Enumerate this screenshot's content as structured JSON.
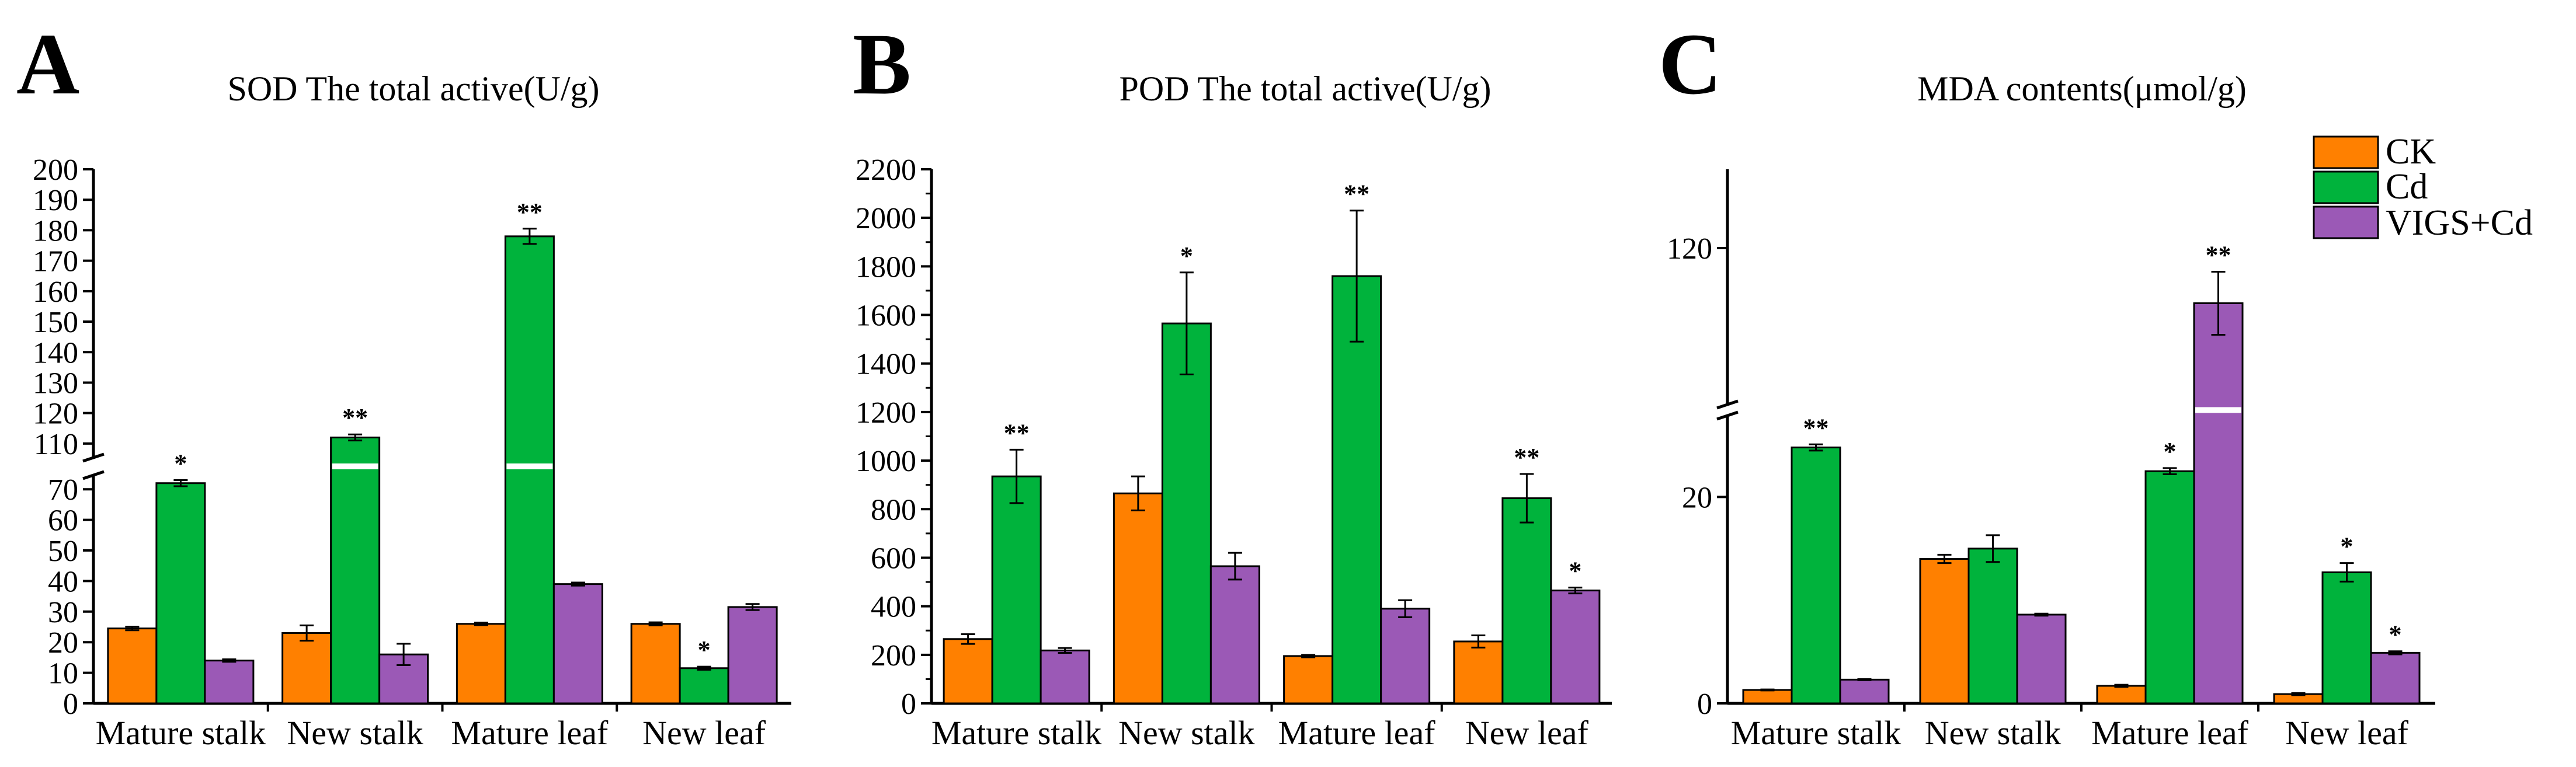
{
  "legend": [
    {
      "label": "CK",
      "color": "#ff8000"
    },
    {
      "label": "Cd",
      "color": "#00b33c"
    },
    {
      "label": "VIGS+Cd",
      "color": "#9b59b6"
    }
  ],
  "chart_data": [
    {
      "panel": "A",
      "type": "bar",
      "title": "SOD The total active(U/g)",
      "categories": [
        "Mature stalk",
        "New stalk",
        "Mature leaf",
        "New leaf"
      ],
      "series": [
        {
          "name": "CK",
          "values": [
            24.5,
            23,
            26,
            26
          ],
          "errors": [
            0.6,
            2.5,
            0.4,
            0.5
          ],
          "sig": [
            "",
            "",
            "",
            ""
          ]
        },
        {
          "name": "Cd",
          "values": [
            72,
            112,
            178,
            11.5
          ],
          "errors": [
            1,
            1,
            2.5,
            0.5
          ],
          "sig": [
            "*",
            "**",
            "**",
            "*"
          ]
        },
        {
          "name": "VIGS+Cd",
          "values": [
            14,
            16,
            39,
            31.5
          ],
          "errors": [
            0.4,
            3.5,
            0.5,
            1
          ],
          "sig": [
            "",
            "",
            "",
            ""
          ]
        }
      ],
      "axis_break": [
        75,
        105
      ],
      "yticks": [
        0,
        10,
        20,
        30,
        40,
        50,
        60,
        70,
        110,
        120,
        130,
        140,
        150,
        160,
        170,
        180,
        190,
        200
      ],
      "ylim": [
        0,
        200
      ]
    },
    {
      "panel": "B",
      "type": "bar",
      "title": "POD The total active(U/g)",
      "categories": [
        "Mature stalk",
        "New stalk",
        "Mature leaf",
        "New leaf"
      ],
      "series": [
        {
          "name": "CK",
          "values": [
            265,
            865,
            195,
            255
          ],
          "errors": [
            20,
            70,
            5,
            25
          ],
          "sig": [
            "",
            "",
            "",
            ""
          ]
        },
        {
          "name": "Cd",
          "values": [
            935,
            1565,
            1760,
            845
          ],
          "errors": [
            110,
            210,
            270,
            100
          ],
          "sig": [
            "**",
            "*",
            "**",
            "**"
          ]
        },
        {
          "name": "VIGS+Cd",
          "values": [
            218,
            565,
            390,
            465
          ],
          "errors": [
            10,
            55,
            35,
            12
          ],
          "sig": [
            "",
            "",
            "",
            "*"
          ]
        }
      ],
      "yticks": [
        0,
        200,
        400,
        600,
        800,
        1000,
        1200,
        1400,
        1600,
        1800,
        2000,
        2200
      ],
      "ylim": [
        0,
        2200
      ]
    },
    {
      "panel": "C",
      "type": "bar",
      "title": "MDA contents(μmol/g)",
      "categories": [
        "Mature stalk",
        "New stalk",
        "Mature leaf",
        "New leaf"
      ],
      "series": [
        {
          "name": "CK",
          "values": [
            1.3,
            14,
            1.7,
            0.9
          ],
          "errors": [
            0.05,
            0.4,
            0.1,
            0.1
          ],
          "sig": [
            "",
            "",
            "",
            ""
          ]
        },
        {
          "name": "Cd",
          "values": [
            24.8,
            15,
            22.5,
            12.7
          ],
          "errors": [
            0.3,
            1.3,
            0.3,
            0.9
          ],
          "sig": [
            "**",
            "",
            "*",
            "*"
          ]
        },
        {
          "name": "VIGS+Cd",
          "values": [
            2.3,
            8.6,
            113,
            4.9
          ],
          "errors": [
            0.05,
            0.1,
            4,
            0.15
          ],
          "sig": [
            "",
            "",
            "**",
            "*"
          ]
        }
      ],
      "axis_break": [
        28,
        100
      ],
      "yticks": [
        0,
        20,
        120
      ],
      "ylim": [
        0,
        130
      ]
    }
  ]
}
